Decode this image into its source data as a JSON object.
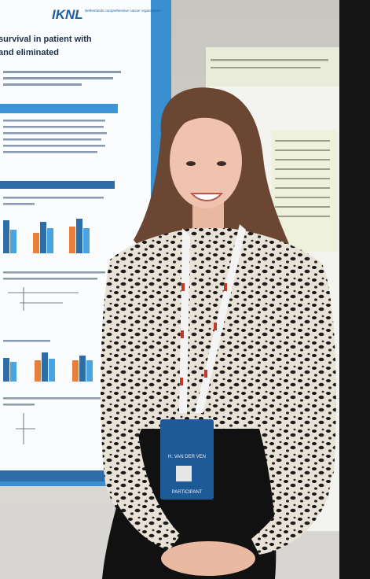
{
  "poster": {
    "logo": "IKNL",
    "logo_tagline": "Netherlands comprehensive cancer organisation",
    "title_lines": [
      "survival in patient with",
      "and eliminated"
    ]
  },
  "badge": {
    "name": "H. VAN DER VEN",
    "role": "PARTICIPANT"
  }
}
